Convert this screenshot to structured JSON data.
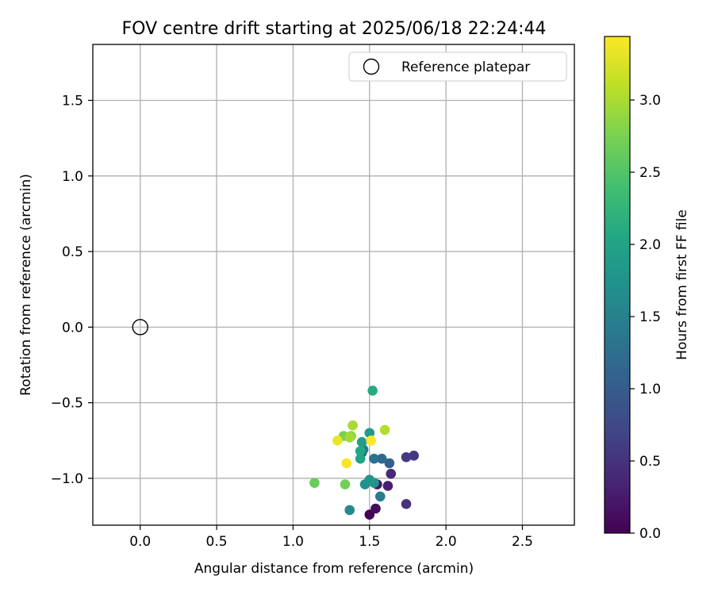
{
  "chart_data": {
    "type": "scatter",
    "title": "FOV centre drift starting at 2025/06/18 22:24:44",
    "xlabel": "Angular distance from reference (arcmin)",
    "ylabel": "Rotation from reference (arcmin)",
    "xlim": [
      -0.31,
      2.84
    ],
    "ylim": [
      -1.31,
      1.87
    ],
    "xticks": [
      0.0,
      0.5,
      1.0,
      1.5,
      2.0,
      2.5
    ],
    "xtick_labels": [
      "0.0",
      "0.5",
      "1.0",
      "1.5",
      "2.0",
      "2.5"
    ],
    "yticks": [
      -1.0,
      -0.5,
      0.0,
      0.5,
      1.0,
      1.5
    ],
    "ytick_labels": [
      "−1.0",
      "−0.5",
      "0.0",
      "0.5",
      "1.0",
      "1.5"
    ],
    "grid": true,
    "legend": {
      "position": "top-right",
      "entries": [
        "Reference platepar"
      ]
    },
    "reference_point": {
      "x": 0.0,
      "y": 0.0
    },
    "colorbar": {
      "label": "Hours from first FF file",
      "min": 0.0,
      "max": 3.44,
      "ticks": [
        0.0,
        0.5,
        1.0,
        1.5,
        2.0,
        2.5,
        3.0
      ],
      "tick_labels": [
        "0.0",
        "0.5",
        "1.0",
        "1.5",
        "2.0",
        "2.5",
        "3.0"
      ],
      "colormap": "viridis"
    },
    "series": [
      {
        "x": [
          1.5,
          1.54,
          1.55,
          1.62,
          1.64,
          1.74,
          1.79,
          1.74,
          1.45,
          1.63,
          1.58,
          1.53,
          1.46,
          1.57,
          1.37,
          1.47,
          1.53,
          1.5,
          1.5,
          1.45,
          1.44,
          1.44,
          1.52,
          1.14,
          1.34,
          1.33,
          1.38,
          1.37,
          1.39,
          1.6,
          1.29,
          1.35,
          1.51
        ],
        "y": [
          -1.24,
          -1.2,
          -1.04,
          -1.05,
          -0.97,
          -1.17,
          -0.85,
          -0.86,
          -0.83,
          -0.9,
          -0.87,
          -0.87,
          -0.81,
          -1.12,
          -1.21,
          -1.04,
          -1.03,
          -1.01,
          -0.7,
          -0.76,
          -0.87,
          -0.82,
          -0.42,
          -1.03,
          -1.04,
          -0.72,
          -0.72,
          -0.73,
          -0.65,
          -0.68,
          -0.75,
          -0.9,
          -0.75
        ],
        "hours": [
          0.0,
          0.1,
          0.2,
          0.3,
          0.4,
          0.5,
          0.55,
          0.6,
          0.75,
          1.05,
          1.15,
          1.3,
          1.4,
          1.45,
          1.6,
          1.7,
          1.75,
          1.8,
          1.85,
          1.9,
          2.0,
          2.05,
          2.1,
          2.65,
          2.7,
          2.75,
          2.85,
          2.95,
          3.0,
          3.05,
          3.35,
          3.4,
          3.44
        ]
      }
    ]
  }
}
